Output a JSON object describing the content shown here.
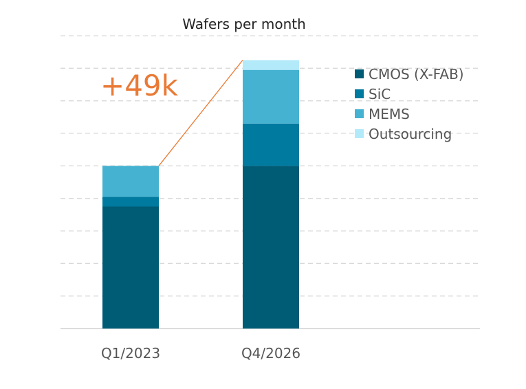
{
  "chart_data": {
    "type": "bar",
    "stacked": true,
    "title": "Wafers per month",
    "xlabel": "",
    "ylabel": "",
    "categories": [
      "Q1/2023",
      "Q4/2026"
    ],
    "series": [
      {
        "name": "CMOS (X-FAB)",
        "color": "#005B74",
        "values": [
          75,
          100
        ]
      },
      {
        "name": "SiC",
        "color": "#007A9F",
        "values": [
          6,
          26
        ]
      },
      {
        "name": "MEMS",
        "color": "#45B2D1",
        "values": [
          19,
          33
        ]
      },
      {
        "name": "Outsourcing",
        "color": "#B3EAFA",
        "values": [
          0,
          6
        ]
      }
    ],
    "ylim": [
      0,
      180
    ],
    "gridlines": [
      20,
      40,
      60,
      80,
      100,
      120,
      140,
      160,
      180
    ],
    "grid": true,
    "legend": "right",
    "annotations": [
      {
        "text": "+49k",
        "color": "#E97A35",
        "connects": "top of Q1/2023 bar to top of Q4/2026 bar"
      }
    ]
  }
}
